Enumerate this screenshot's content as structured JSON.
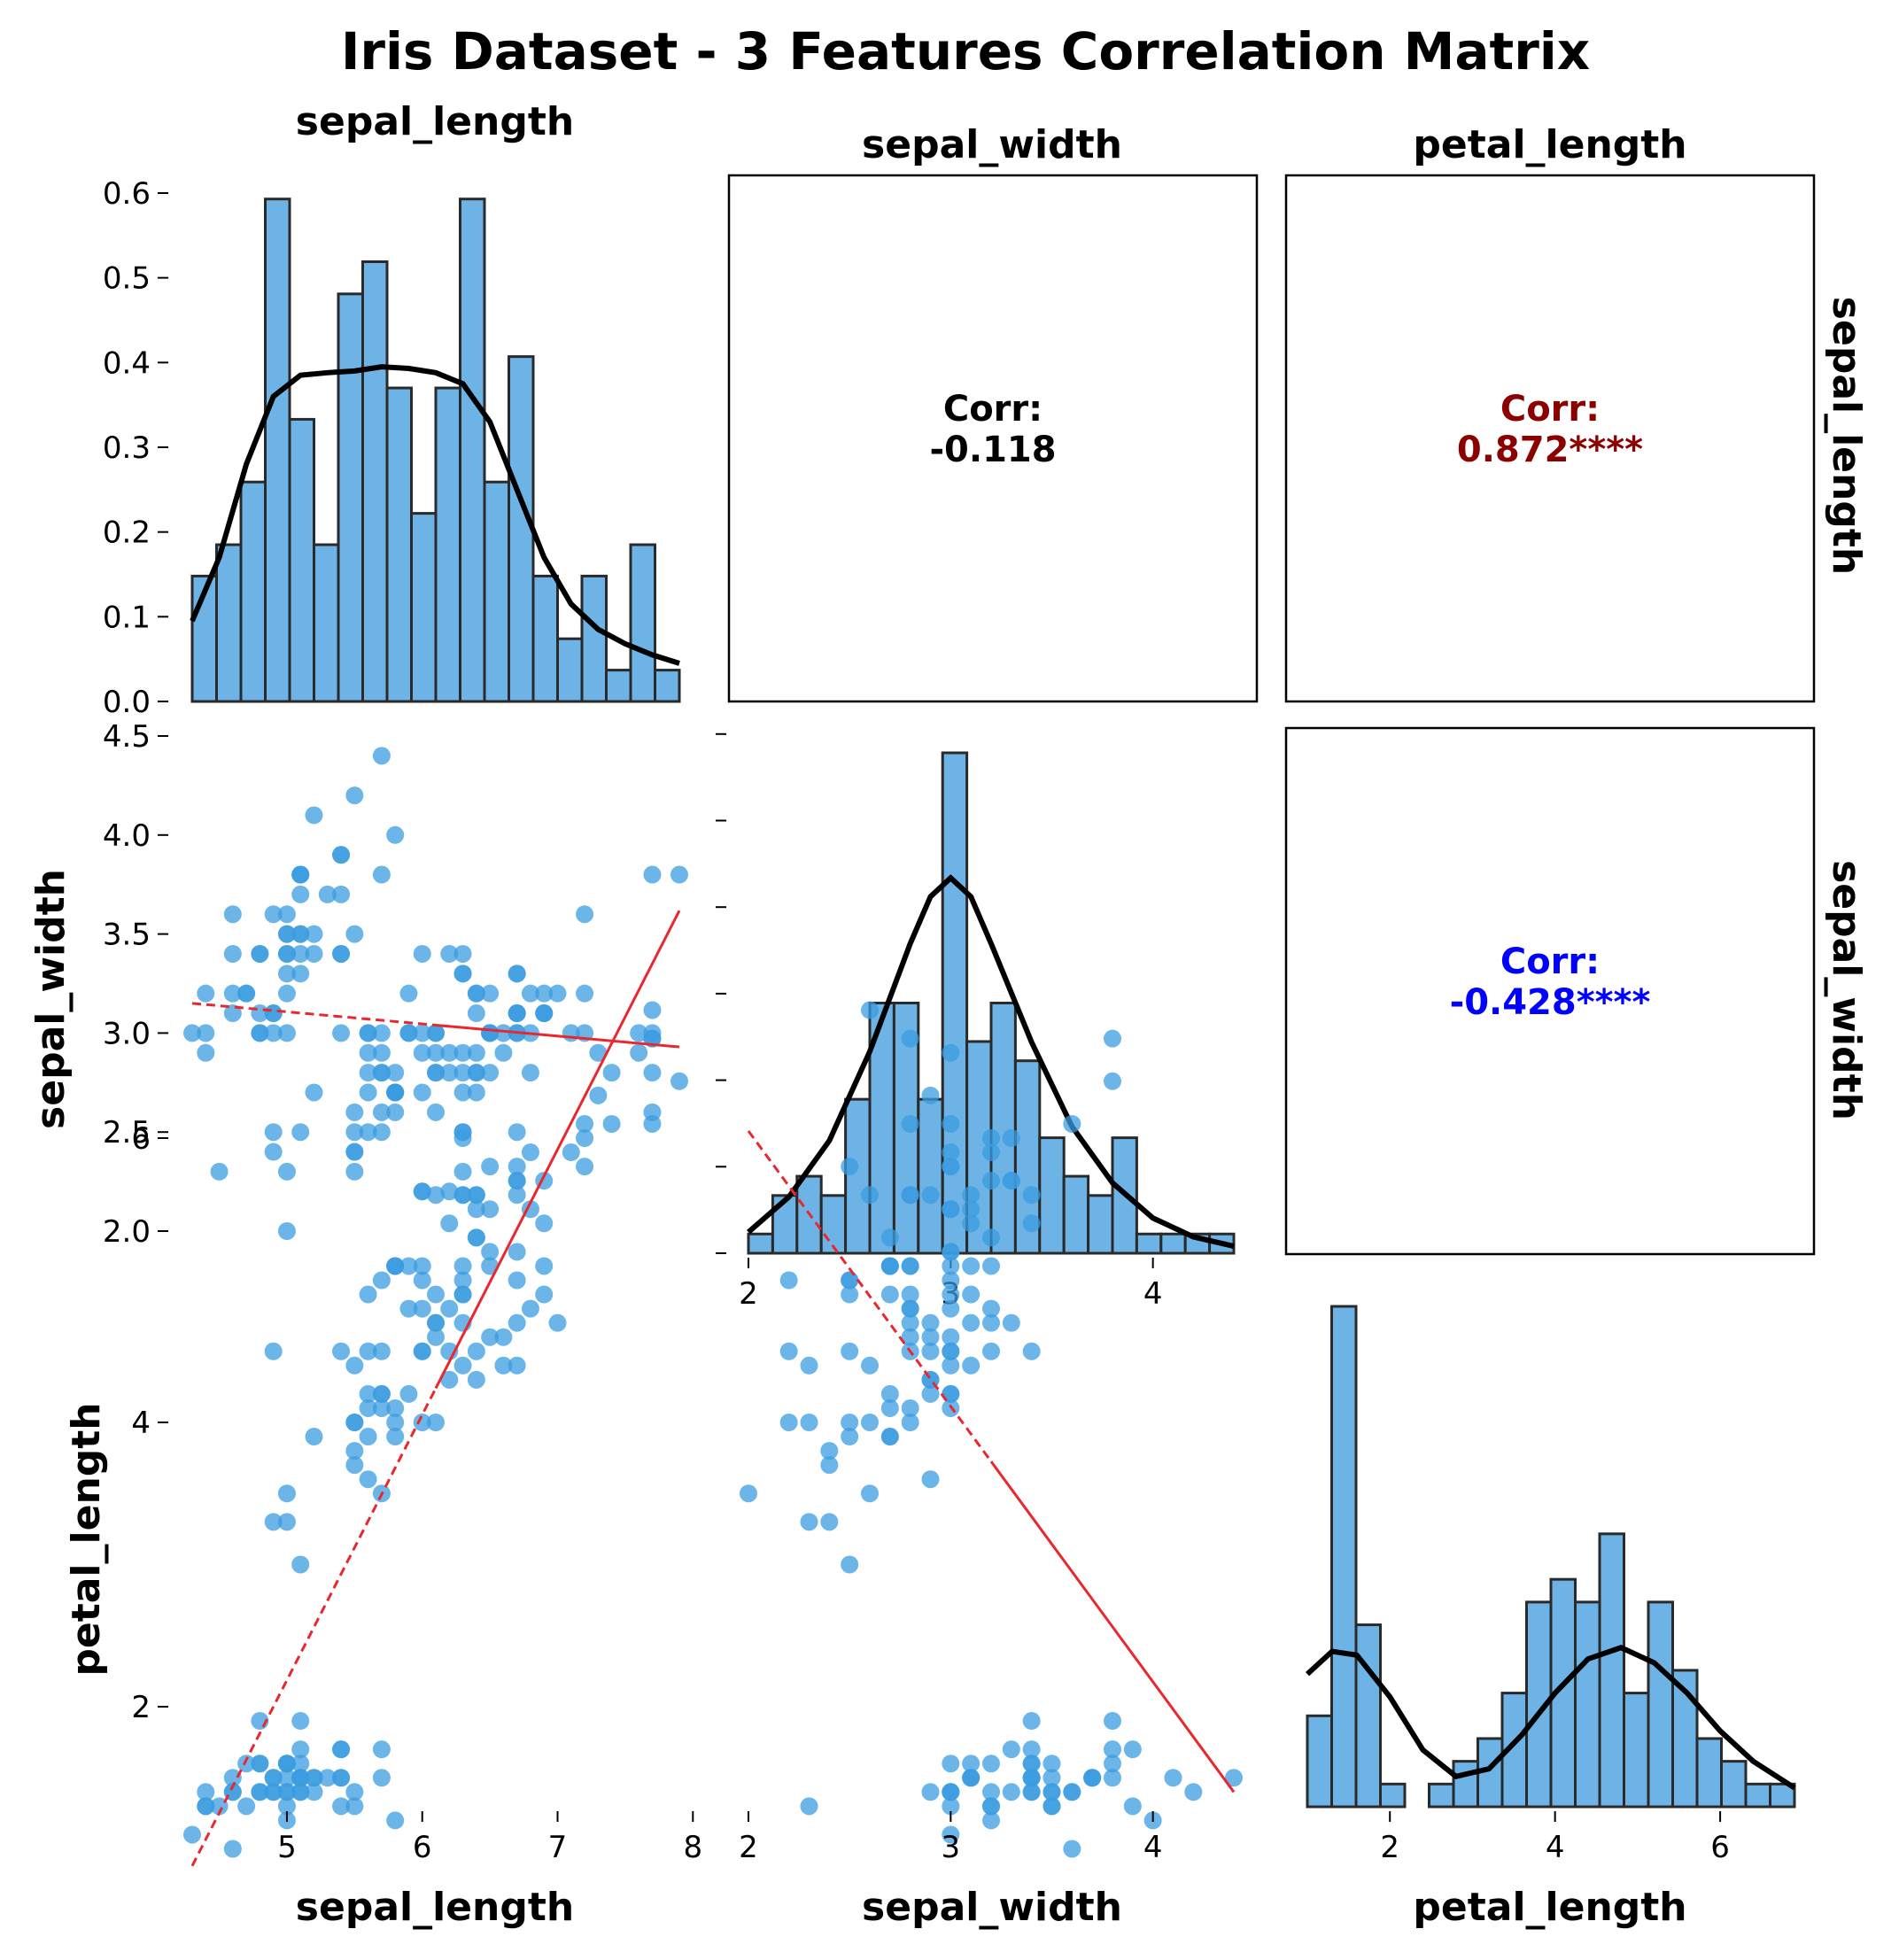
{
  "chart_data": {
    "type": "scatter",
    "title": "Iris Dataset - 3 Features Correlation Matrix",
    "variables": [
      "sepal_length",
      "sepal_width",
      "petal_length"
    ],
    "ranges": {
      "sepal_length": [
        4.3,
        7.9
      ],
      "sepal_width": [
        2.0,
        4.4
      ],
      "petal_length": [
        1.0,
        6.9
      ]
    },
    "ticks": {
      "sepal_length": [
        5,
        6,
        7,
        8
      ],
      "sepal_width": [
        2,
        3,
        4
      ],
      "petal_length": [
        2,
        4,
        6
      ]
    },
    "diag_sepal_length_yticks": [
      "0.0",
      "0.1",
      "0.2",
      "0.3",
      "0.4",
      "0.5",
      "0.6"
    ],
    "row_sepal_width_yticks": [
      "2.0",
      "2.5",
      "3.0",
      "3.5",
      "4.0",
      "4.5"
    ],
    "row_petal_length_yticks": [
      "2",
      "4",
      "6"
    ],
    "correlations": [
      {
        "row": "sepal_length",
        "col": "sepal_width",
        "label": "Corr:",
        "value": "-0.118",
        "color": "#000000"
      },
      {
        "row": "sepal_length",
        "col": "petal_length",
        "label": "Corr:",
        "value": "0.872****",
        "color": "#8b0000"
      },
      {
        "row": "sepal_width",
        "col": "petal_length",
        "label": "Corr:",
        "value": "-0.428****",
        "color": "#0000ff"
      }
    ],
    "histograms": {
      "sepal_length": {
        "range": [
          4.3,
          7.9
        ],
        "densities": [
          0.148,
          0.185,
          0.259,
          0.593,
          0.333,
          0.185,
          0.481,
          0.519,
          0.37,
          0.222,
          0.37,
          0.593,
          0.259,
          0.407,
          0.148,
          0.074,
          0.148,
          0.037,
          0.185,
          0.037
        ],
        "kde": [
          [
            4.3,
            0.095
          ],
          [
            4.5,
            0.17
          ],
          [
            4.7,
            0.28
          ],
          [
            4.9,
            0.36
          ],
          [
            5.1,
            0.385
          ],
          [
            5.3,
            0.388
          ],
          [
            5.5,
            0.39
          ],
          [
            5.7,
            0.395
          ],
          [
            5.9,
            0.393
          ],
          [
            6.1,
            0.388
          ],
          [
            6.3,
            0.375
          ],
          [
            6.5,
            0.33
          ],
          [
            6.7,
            0.25
          ],
          [
            6.9,
            0.17
          ],
          [
            7.1,
            0.115
          ],
          [
            7.3,
            0.085
          ],
          [
            7.5,
            0.068
          ],
          [
            7.7,
            0.055
          ],
          [
            7.9,
            0.045
          ]
        ],
        "ylim": [
          0,
          0.6
        ]
      },
      "sepal_width": {
        "range": [
          2.0,
          4.4
        ],
        "counts": [
          1,
          3,
          4,
          3,
          8,
          13,
          13,
          8,
          26,
          11,
          13,
          10,
          6,
          4,
          3,
          6,
          1,
          1,
          1,
          1
        ],
        "kde_peak_count": 19.5,
        "kde": [
          [
            2.0,
            0.045
          ],
          [
            2.2,
            0.12
          ],
          [
            2.4,
            0.24
          ],
          [
            2.6,
            0.43
          ],
          [
            2.8,
            0.66
          ],
          [
            2.9,
            0.76
          ],
          [
            3.0,
            0.8
          ],
          [
            3.1,
            0.76
          ],
          [
            3.2,
            0.66
          ],
          [
            3.4,
            0.45
          ],
          [
            3.6,
            0.27
          ],
          [
            3.8,
            0.15
          ],
          [
            4.0,
            0.075
          ],
          [
            4.2,
            0.035
          ],
          [
            4.4,
            0.015
          ]
        ]
      },
      "petal_length": {
        "range": [
          1.0,
          6.9
        ],
        "counts": [
          4,
          22,
          8,
          1,
          0,
          1,
          2,
          3,
          5,
          9,
          10,
          9,
          12,
          5,
          9,
          6,
          3,
          2,
          1,
          1
        ],
        "kde_peak_count": 7,
        "kde": [
          [
            1.0,
            0.35
          ],
          [
            1.3,
            0.41
          ],
          [
            1.6,
            0.4
          ],
          [
            2.0,
            0.29
          ],
          [
            2.4,
            0.15
          ],
          [
            2.8,
            0.08
          ],
          [
            3.2,
            0.1
          ],
          [
            3.6,
            0.19
          ],
          [
            4.0,
            0.3
          ],
          [
            4.4,
            0.39
          ],
          [
            4.8,
            0.42
          ],
          [
            5.2,
            0.38
          ],
          [
            5.6,
            0.3
          ],
          [
            6.0,
            0.2
          ],
          [
            6.4,
            0.12
          ],
          [
            6.9,
            0.05
          ]
        ]
      }
    },
    "points": {
      "sepal_length": [
        5.1,
        4.9,
        4.7,
        4.6,
        5.0,
        5.4,
        4.6,
        5.0,
        4.4,
        4.9,
        5.4,
        4.8,
        4.8,
        4.3,
        5.8,
        5.7,
        5.4,
        5.1,
        5.7,
        5.1,
        5.4,
        5.1,
        4.6,
        5.1,
        4.8,
        5.0,
        5.0,
        5.2,
        5.2,
        4.7,
        4.8,
        5.4,
        5.2,
        5.5,
        4.9,
        5.0,
        5.5,
        4.9,
        4.4,
        5.1,
        5.0,
        4.5,
        4.4,
        5.0,
        5.1,
        4.8,
        5.1,
        4.6,
        5.3,
        5.0,
        7.0,
        6.4,
        6.9,
        5.5,
        6.5,
        5.7,
        6.3,
        4.9,
        6.6,
        5.2,
        5.0,
        5.9,
        6.0,
        6.1,
        5.6,
        6.7,
        5.6,
        5.8,
        6.2,
        5.6,
        5.9,
        6.1,
        6.3,
        6.1,
        6.4,
        6.6,
        6.8,
        6.7,
        6.0,
        5.7,
        5.5,
        5.5,
        5.8,
        6.0,
        5.4,
        6.0,
        6.7,
        6.3,
        5.6,
        5.5,
        5.5,
        6.1,
        5.8,
        5.0,
        5.6,
        5.7,
        5.7,
        6.2,
        5.1,
        5.7,
        6.3,
        5.8,
        7.1,
        6.3,
        6.5,
        7.6,
        4.9,
        7.3,
        6.7,
        7.2,
        6.5,
        6.4,
        6.8,
        5.7,
        5.8,
        6.4,
        6.5,
        7.7,
        7.7,
        6.0,
        6.9,
        5.6,
        7.7,
        6.3,
        6.7,
        7.2,
        6.2,
        6.1,
        6.4,
        7.2,
        7.4,
        7.9,
        6.4,
        6.3,
        6.1,
        7.7,
        6.3,
        6.4,
        6.0,
        6.9,
        6.7,
        6.9,
        5.8,
        6.8,
        6.7,
        6.7,
        6.3,
        6.5,
        6.2,
        5.9
      ],
      "sepal_width": [
        3.5,
        3.0,
        3.2,
        3.1,
        3.6,
        3.9,
        3.4,
        3.4,
        2.9,
        3.1,
        3.7,
        3.4,
        3.0,
        3.0,
        4.0,
        4.4,
        3.9,
        3.5,
        3.8,
        3.8,
        3.4,
        3.7,
        3.6,
        3.3,
        3.4,
        3.0,
        3.4,
        3.5,
        3.4,
        3.2,
        3.1,
        3.4,
        4.1,
        4.2,
        3.1,
        3.2,
        3.5,
        3.6,
        3.0,
        3.4,
        3.5,
        2.3,
        3.2,
        3.5,
        3.8,
        3.0,
        3.8,
        3.2,
        3.7,
        3.3,
        3.2,
        3.2,
        3.1,
        2.3,
        2.8,
        2.8,
        3.3,
        2.4,
        2.9,
        2.7,
        2.0,
        3.0,
        2.2,
        2.9,
        2.9,
        3.1,
        3.0,
        2.7,
        2.2,
        2.5,
        3.2,
        2.8,
        2.5,
        2.8,
        2.9,
        3.0,
        2.8,
        3.0,
        2.9,
        2.6,
        2.4,
        2.4,
        2.7,
        2.7,
        3.0,
        3.4,
        3.1,
        2.3,
        3.0,
        2.5,
        2.6,
        3.0,
        2.6,
        2.3,
        2.7,
        3.0,
        2.9,
        2.9,
        2.5,
        2.8,
        3.3,
        2.7,
        3.0,
        2.9,
        3.0,
        3.0,
        2.5,
        2.9,
        2.5,
        3.6,
        3.2,
        2.7,
        3.0,
        2.5,
        2.8,
        3.2,
        3.0,
        3.8,
        2.6,
        2.2,
        3.2,
        2.8,
        2.8,
        2.7,
        3.3,
        3.2,
        2.8,
        3.0,
        2.8,
        3.0,
        2.8,
        3.8,
        2.8,
        2.8,
        2.6,
        3.0,
        3.4,
        3.1,
        3.0,
        3.1,
        3.1,
        3.1,
        2.7,
        3.2,
        3.3,
        3.0,
        2.5,
        3.0,
        3.4,
        3.0
      ],
      "petal_length": [
        1.4,
        1.4,
        1.3,
        1.5,
        1.4,
        1.7,
        1.4,
        1.5,
        1.4,
        1.5,
        1.5,
        1.6,
        1.4,
        1.1,
        1.2,
        1.5,
        1.3,
        1.4,
        1.7,
        1.5,
        1.7,
        1.5,
        1.0,
        1.7,
        1.9,
        1.6,
        1.6,
        1.5,
        1.4,
        1.6,
        1.6,
        1.5,
        1.5,
        1.4,
        1.5,
        1.2,
        1.3,
        1.4,
        1.3,
        1.5,
        1.3,
        1.3,
        1.3,
        1.6,
        1.9,
        1.4,
        1.6,
        1.4,
        1.5,
        1.4,
        4.7,
        4.5,
        4.9,
        4.0,
        4.6,
        4.5,
        4.7,
        3.3,
        4.6,
        3.9,
        3.5,
        4.2,
        4.0,
        4.7,
        3.6,
        4.4,
        4.5,
        4.1,
        4.5,
        3.9,
        4.8,
        4.0,
        4.9,
        4.7,
        4.3,
        4.4,
        4.8,
        5.0,
        4.5,
        3.5,
        3.8,
        3.7,
        3.9,
        5.1,
        4.5,
        4.5,
        4.7,
        4.4,
        4.1,
        4.0,
        4.4,
        4.6,
        4.0,
        3.3,
        4.2,
        4.2,
        4.2,
        4.3,
        3.0,
        4.1,
        6.0,
        5.1,
        5.9,
        5.6,
        5.8,
        6.6,
        4.5,
        6.3,
        5.8,
        6.1,
        5.1,
        5.3,
        5.5,
        5.0,
        5.1,
        5.3,
        5.5,
        6.7,
        6.9,
        5.0,
        5.7,
        4.9,
        6.7,
        4.9,
        5.7,
        6.0,
        4.8,
        4.9,
        5.6,
        5.8,
        6.1,
        6.4,
        5.6,
        5.1,
        5.6,
        6.1,
        5.6,
        5.5,
        4.8,
        5.4,
        5.6,
        5.1,
        5.1,
        5.9,
        5.7,
        5.2,
        5.0,
        5.2,
        5.4,
        5.1
      ]
    },
    "regression_lines": [
      {
        "row": "sepal_width",
        "col": "sepal_length",
        "x": [
          4.3,
          7.9
        ],
        "y": [
          3.15,
          2.93
        ]
      },
      {
        "row": "petal_length",
        "col": "sepal_length",
        "x": [
          4.3,
          7.9
        ],
        "y": [
          0.88,
          7.6
        ]
      },
      {
        "row": "petal_length",
        "col": "sepal_width",
        "x": [
          2.0,
          4.4
        ],
        "y": [
          6.05,
          1.4
        ]
      }
    ],
    "colors": {
      "points": "#3b9ce0",
      "bars": "#6db3e6",
      "bar_edge": "#2a2a2a",
      "kde": "#000000",
      "regression": "#e8282e"
    }
  }
}
